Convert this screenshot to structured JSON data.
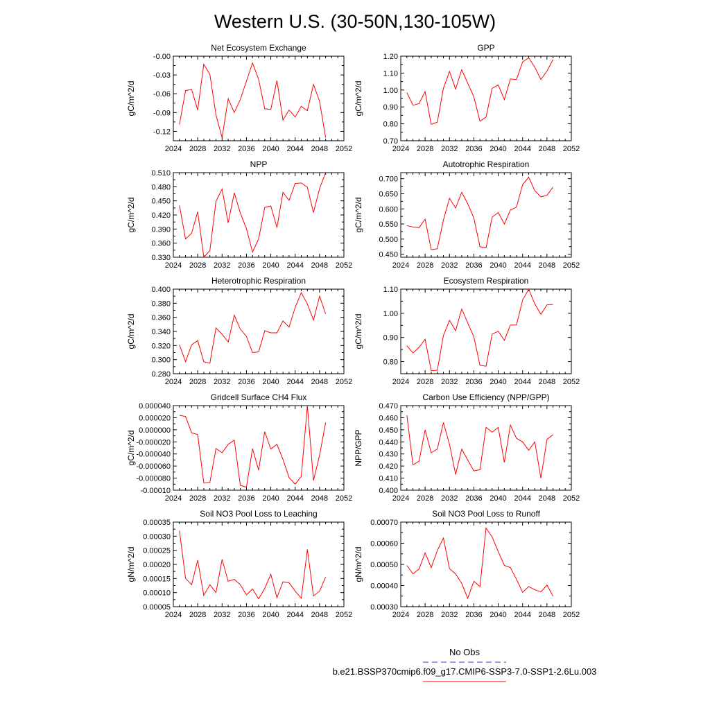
{
  "figure": {
    "title": "Western U.S. (30-50N,130-105W)",
    "legend": {
      "entries": [
        {
          "label": "No Obs",
          "color": "#3333cc",
          "dashed": true
        },
        {
          "label": "b.e21.BSSP370cmip6.f09_g17.CMIP6-SSP3-7.0-SSP1-2.6Lu.003",
          "color": "#ff0000",
          "dashed": false
        }
      ]
    },
    "line_color": "#ff0000"
  },
  "chart_data": [
    {
      "type": "line",
      "title": "Net Ecosystem Exchange",
      "ylabel": "gC/m^2/d",
      "xlim": [
        2024,
        2052
      ],
      "xticks": [
        2024,
        2028,
        2032,
        2036,
        2040,
        2044,
        2048,
        2052
      ],
      "ylim": [
        -0.135,
        0.0
      ],
      "yticks": [
        -0.12,
        -0.09,
        -0.06,
        -0.03,
        0.0
      ],
      "yticklabels": [
        "-0.12",
        "-0.09",
        "-0.06",
        "-0.03",
        "-0.00"
      ],
      "x": [
        2025,
        2026,
        2027,
        2028,
        2029,
        2030,
        2031,
        2032,
        2033,
        2034,
        2035,
        2036,
        2037,
        2038,
        2039,
        2040,
        2041,
        2042,
        2043,
        2044,
        2045,
        2046,
        2047,
        2048,
        2049
      ],
      "series": [
        {
          "values": [
            -0.109,
            -0.055,
            -0.053,
            -0.086,
            -0.013,
            -0.029,
            -0.094,
            -0.13,
            -0.068,
            -0.09,
            -0.069,
            -0.04,
            -0.011,
            -0.037,
            -0.084,
            -0.085,
            -0.039,
            -0.102,
            -0.086,
            -0.097,
            -0.08,
            -0.087,
            -0.045,
            -0.072,
            -0.13
          ]
        }
      ]
    },
    {
      "type": "line",
      "title": "GPP",
      "ylabel": "gC/m^2/d",
      "xlim": [
        2024,
        2052
      ],
      "xticks": [
        2024,
        2028,
        2032,
        2036,
        2040,
        2044,
        2048,
        2052
      ],
      "ylim": [
        0.7,
        1.2
      ],
      "yticks": [
        0.7,
        0.8,
        0.9,
        1.0,
        1.1,
        1.2
      ],
      "yticklabels": [
        "0.70",
        "0.80",
        "0.90",
        "1.00",
        "1.10",
        "1.20"
      ],
      "x": [
        2025,
        2026,
        2027,
        2028,
        2029,
        2030,
        2031,
        2032,
        2033,
        2034,
        2035,
        2036,
        2037,
        2038,
        2039,
        2040,
        2041,
        2042,
        2043,
        2044,
        2045,
        2046,
        2047,
        2048,
        2049
      ],
      "series": [
        {
          "values": [
            0.985,
            0.91,
            0.92,
            0.99,
            0.797,
            0.81,
            1.01,
            1.11,
            1.005,
            1.12,
            1.04,
            0.96,
            0.815,
            0.84,
            1.01,
            1.03,
            0.943,
            1.065,
            1.062,
            1.165,
            1.19,
            1.135,
            1.062,
            1.112,
            1.18
          ]
        }
      ]
    },
    {
      "type": "line",
      "title": "NPP",
      "ylabel": "gC/m^2/d",
      "xlim": [
        2024,
        2052
      ],
      "xticks": [
        2024,
        2028,
        2032,
        2036,
        2040,
        2044,
        2048,
        2052
      ],
      "ylim": [
        0.33,
        0.51
      ],
      "yticks": [
        0.33,
        0.36,
        0.39,
        0.42,
        0.45,
        0.48,
        0.51
      ],
      "yticklabels": [
        "0.330",
        "0.360",
        "0.390",
        "0.420",
        "0.450",
        "0.480",
        "0.510"
      ],
      "x": [
        2025,
        2026,
        2027,
        2028,
        2029,
        2030,
        2031,
        2032,
        2033,
        2034,
        2035,
        2036,
        2037,
        2038,
        2039,
        2040,
        2041,
        2042,
        2043,
        2044,
        2045,
        2046,
        2047,
        2048,
        2049
      ],
      "series": [
        {
          "values": [
            0.44,
            0.369,
            0.381,
            0.427,
            0.33,
            0.344,
            0.449,
            0.475,
            0.403,
            0.467,
            0.424,
            0.391,
            0.341,
            0.369,
            0.436,
            0.439,
            0.393,
            0.468,
            0.451,
            0.487,
            0.488,
            0.479,
            0.425,
            0.476,
            0.51
          ]
        }
      ]
    },
    {
      "type": "line",
      "title": "Autotrophic Respiration",
      "ylabel": "gC/m^2/d",
      "xlim": [
        2024,
        2052
      ],
      "xticks": [
        2024,
        2028,
        2032,
        2036,
        2040,
        2044,
        2048,
        2052
      ],
      "ylim": [
        0.44,
        0.72
      ],
      "yticks": [
        0.45,
        0.5,
        0.55,
        0.6,
        0.65,
        0.7
      ],
      "yticklabels": [
        "0.450",
        "0.500",
        "0.550",
        "0.600",
        "0.650",
        "0.700"
      ],
      "x": [
        2025,
        2026,
        2027,
        2028,
        2029,
        2030,
        2031,
        2032,
        2033,
        2034,
        2035,
        2036,
        2037,
        2038,
        2039,
        2040,
        2041,
        2042,
        2043,
        2044,
        2045,
        2046,
        2047,
        2048,
        2049
      ],
      "series": [
        {
          "values": [
            0.545,
            0.54,
            0.538,
            0.566,
            0.465,
            0.468,
            0.563,
            0.635,
            0.603,
            0.655,
            0.617,
            0.57,
            0.475,
            0.471,
            0.573,
            0.588,
            0.55,
            0.596,
            0.606,
            0.68,
            0.705,
            0.66,
            0.64,
            0.645,
            0.672
          ]
        }
      ]
    },
    {
      "type": "line",
      "title": "Heterotrophic Respiration",
      "ylabel": "gC/m^2/d",
      "xlim": [
        2024,
        2052
      ],
      "xticks": [
        2024,
        2028,
        2032,
        2036,
        2040,
        2044,
        2048,
        2052
      ],
      "ylim": [
        0.28,
        0.4
      ],
      "yticks": [
        0.28,
        0.3,
        0.32,
        0.34,
        0.36,
        0.38,
        0.4
      ],
      "yticklabels": [
        "0.280",
        "0.300",
        "0.320",
        "0.340",
        "0.360",
        "0.380",
        "0.400"
      ],
      "x": [
        2025,
        2026,
        2027,
        2028,
        2029,
        2030,
        2031,
        2032,
        2033,
        2034,
        2035,
        2036,
        2037,
        2038,
        2039,
        2040,
        2041,
        2042,
        2043,
        2044,
        2045,
        2046,
        2047,
        2048,
        2049
      ],
      "series": [
        {
          "values": [
            0.321,
            0.297,
            0.321,
            0.327,
            0.297,
            0.295,
            0.345,
            0.336,
            0.325,
            0.363,
            0.343,
            0.333,
            0.31,
            0.311,
            0.341,
            0.338,
            0.338,
            0.355,
            0.346,
            0.374,
            0.395,
            0.379,
            0.356,
            0.39,
            0.365
          ]
        }
      ]
    },
    {
      "type": "line",
      "title": "Ecosystem Respiration",
      "ylabel": "gC/m^2/d",
      "xlim": [
        2024,
        2052
      ],
      "xticks": [
        2024,
        2028,
        2032,
        2036,
        2040,
        2044,
        2048,
        2052
      ],
      "ylim": [
        0.75,
        1.1
      ],
      "yticks": [
        0.8,
        0.9,
        1.0,
        1.1
      ],
      "yticklabels": [
        "0.80",
        "0.90",
        "1.00",
        "1.10"
      ],
      "x": [
        2025,
        2026,
        2027,
        2028,
        2029,
        2030,
        2031,
        2032,
        2033,
        2034,
        2035,
        2036,
        2037,
        2038,
        2039,
        2040,
        2041,
        2042,
        2043,
        2044,
        2045,
        2046,
        2047,
        2048,
        2049
      ],
      "series": [
        {
          "values": [
            0.866,
            0.836,
            0.859,
            0.893,
            0.763,
            0.764,
            0.908,
            0.971,
            0.928,
            1.018,
            0.96,
            0.903,
            0.785,
            0.781,
            0.914,
            0.926,
            0.888,
            0.951,
            0.952,
            1.054,
            1.1,
            1.039,
            0.996,
            1.035,
            1.037
          ]
        }
      ]
    },
    {
      "type": "line",
      "title": "Gridcell Surface CH4 Flux",
      "ylabel": "gC/m^2/d",
      "xlim": [
        2024,
        2052
      ],
      "xticks": [
        2024,
        2028,
        2032,
        2036,
        2040,
        2044,
        2048,
        2052
      ],
      "ylim": [
        -0.0001,
        4e-05
      ],
      "yticks": [
        -0.0001,
        -8e-05,
        -6e-05,
        -4e-05,
        -2e-05,
        0.0,
        2e-05,
        4e-05
      ],
      "yticklabels": [
        "-0.00010",
        "-0.000080",
        "-0.000060",
        "-0.000040",
        "-0.000020",
        "0.000000",
        "0.000020",
        "0.000040"
      ],
      "x": [
        2025,
        2026,
        2027,
        2028,
        2029,
        2030,
        2031,
        2032,
        2033,
        2034,
        2035,
        2036,
        2037,
        2038,
        2039,
        2040,
        2041,
        2042,
        2043,
        2044,
        2045,
        2046,
        2047,
        2048,
        2049
      ],
      "series": [
        {
          "values": [
            2.4e-05,
            2.2e-05,
            -5e-06,
            -8e-06,
            -8.8e-05,
            -8.7e-05,
            -3.1e-05,
            -3.8e-05,
            -2.4e-05,
            -1.7e-05,
            -9.2e-05,
            -9.5e-05,
            -3.1e-05,
            -6.7e-05,
            -3e-06,
            -3.2e-05,
            -2.4e-05,
            -4.9e-05,
            -7.9e-05,
            -9e-05,
            -7.7e-05,
            4e-05,
            -8.4e-05,
            -4.2e-05,
            1.2e-05
          ]
        }
      ]
    },
    {
      "type": "line",
      "title": "Carbon Use Efficiency (NPP/GPP)",
      "ylabel": "NPP/GPP",
      "xlim": [
        2024,
        2052
      ],
      "xticks": [
        2024,
        2028,
        2032,
        2036,
        2040,
        2044,
        2048,
        2052
      ],
      "ylim": [
        0.4,
        0.47
      ],
      "yticks": [
        0.4,
        0.41,
        0.42,
        0.43,
        0.44,
        0.45,
        0.46,
        0.47
      ],
      "yticklabels": [
        "0.400",
        "0.410",
        "0.420",
        "0.430",
        "0.440",
        "0.450",
        "0.460",
        "0.470"
      ],
      "x": [
        2025,
        2026,
        2027,
        2028,
        2029,
        2030,
        2031,
        2032,
        2033,
        2034,
        2035,
        2036,
        2037,
        2038,
        2039,
        2040,
        2041,
        2042,
        2043,
        2044,
        2045,
        2046,
        2047,
        2048,
        2049
      ],
      "series": [
        {
          "values": [
            0.462,
            0.421,
            0.424,
            0.45,
            0.431,
            0.434,
            0.456,
            0.438,
            0.413,
            0.434,
            0.425,
            0.416,
            0.417,
            0.452,
            0.448,
            0.452,
            0.423,
            0.454,
            0.443,
            0.44,
            0.433,
            0.44,
            0.41,
            0.442,
            0.446
          ]
        }
      ]
    },
    {
      "type": "line",
      "title": "Soil NO3 Pool Loss to Leaching",
      "ylabel": "gN/m^2/d",
      "xlim": [
        2024,
        2052
      ],
      "xticks": [
        2024,
        2028,
        2032,
        2036,
        2040,
        2044,
        2048,
        2052
      ],
      "ylim": [
        5e-05,
        0.00035
      ],
      "yticks": [
        5e-05,
        0.0001,
        0.00015,
        0.0002,
        0.00025,
        0.0003,
        0.00035
      ],
      "yticklabels": [
        "0.00005",
        "0.00010",
        "0.00015",
        "0.00020",
        "0.00025",
        "0.00030",
        "0.00035"
      ],
      "x": [
        2025,
        2026,
        2027,
        2028,
        2029,
        2030,
        2031,
        2032,
        2033,
        2034,
        2035,
        2036,
        2037,
        2038,
        2039,
        2040,
        2041,
        2042,
        2043,
        2044,
        2045,
        2046,
        2047,
        2048,
        2049
      ],
      "series": [
        {
          "values": [
            0.00032,
            0.00015,
            0.000128,
            0.000215,
            9e-05,
            0.000128,
            0.0001,
            0.000218,
            0.00014,
            0.000147,
            0.000128,
            9.2e-05,
            0.000113,
            7.8e-05,
            0.000115,
            0.000165,
            8.2e-05,
            0.000138,
            0.000135,
            0.000105,
            8e-05,
            0.000253,
            8.8e-05,
            0.000105,
            0.000155
          ]
        }
      ]
    },
    {
      "type": "line",
      "title": "Soil NO3 Pool Loss to Runoff",
      "ylabel": "gN/m^2/d",
      "xlim": [
        2024,
        2052
      ],
      "xticks": [
        2024,
        2028,
        2032,
        2036,
        2040,
        2044,
        2048,
        2052
      ],
      "ylim": [
        0.0003,
        0.0007
      ],
      "yticks": [
        0.0003,
        0.0004,
        0.0005,
        0.0006,
        0.0007
      ],
      "yticklabels": [
        "0.00030",
        "0.00040",
        "0.00050",
        "0.00060",
        "0.00070"
      ],
      "x": [
        2025,
        2026,
        2027,
        2028,
        2029,
        2030,
        2031,
        2032,
        2033,
        2034,
        2035,
        2036,
        2037,
        2038,
        2039,
        2040,
        2041,
        2042,
        2043,
        2044,
        2045,
        2046,
        2047,
        2048,
        2049
      ],
      "series": [
        {
          "values": [
            0.000495,
            0.000455,
            0.000478,
            0.000555,
            0.000485,
            0.000565,
            0.000625,
            0.00048,
            0.000455,
            0.00041,
            0.00034,
            0.00042,
            0.000395,
            0.000672,
            0.00063,
            0.00056,
            0.000495,
            0.000485,
            0.00043,
            0.000368,
            0.000395,
            0.00038,
            0.00037,
            0.000402,
            0.00035
          ]
        }
      ]
    }
  ]
}
